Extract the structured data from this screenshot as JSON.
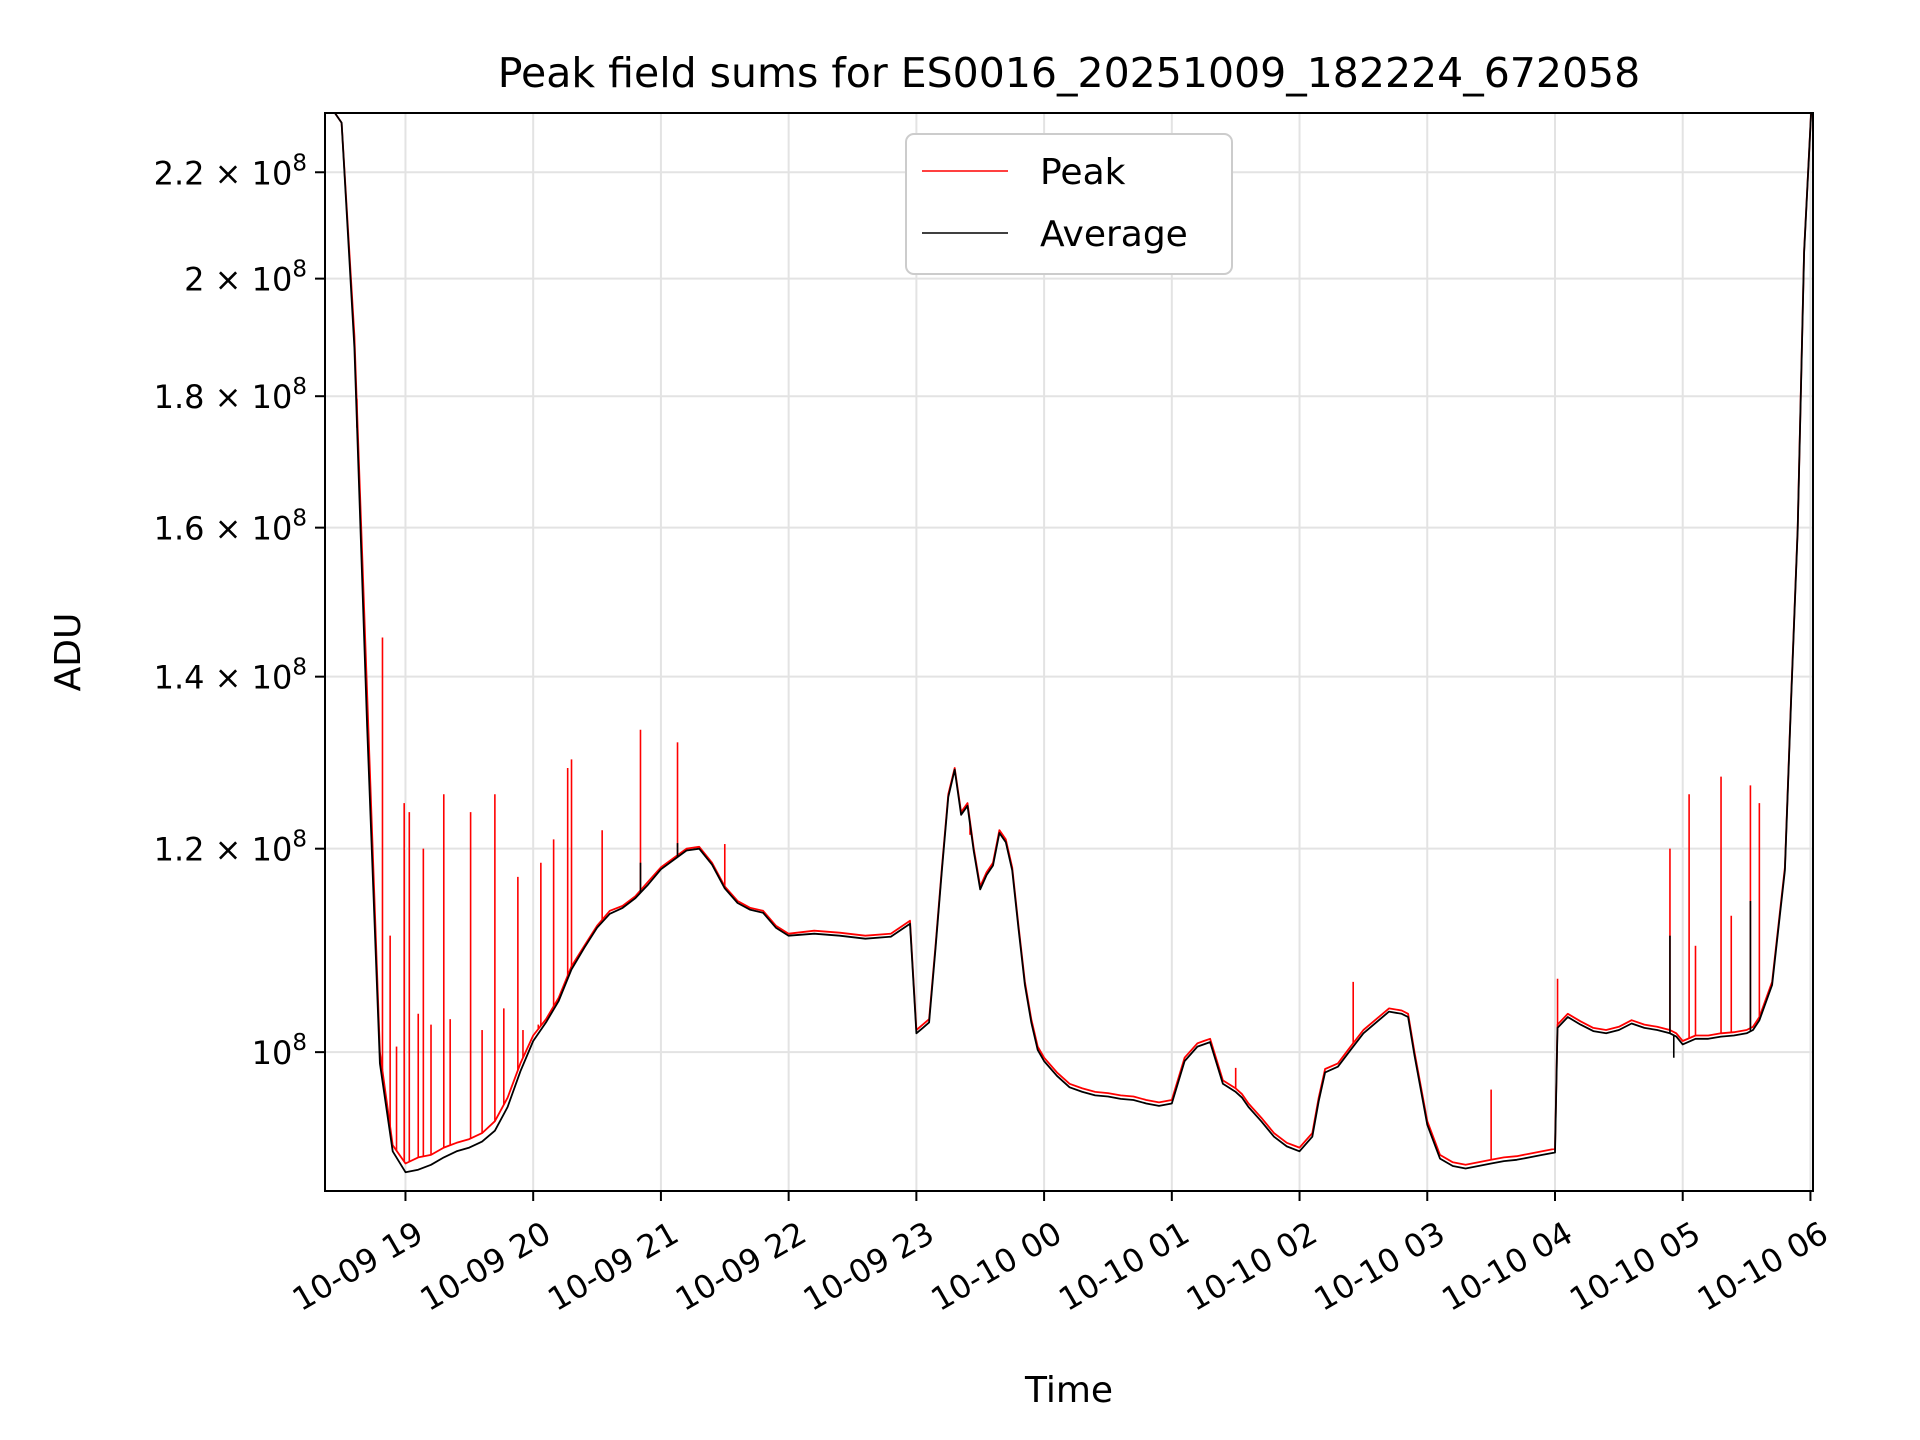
{
  "chart_data": {
    "type": "line",
    "title": "Peak field sums for ES0016_20251009_182224_672058",
    "xlabel": "Time",
    "ylabel": "ADU",
    "yscale": "log",
    "grid": true,
    "legend_position": "top-center",
    "x_unit": "hours since 10-09 00:00",
    "xlim": [
      18.37,
      30.02
    ],
    "ylim": [
      88300000,
      232000000
    ],
    "x_ticks": [
      {
        "value": 19,
        "label": "10-09 19"
      },
      {
        "value": 20,
        "label": "10-09 20"
      },
      {
        "value": 21,
        "label": "10-09 21"
      },
      {
        "value": 22,
        "label": "10-09 22"
      },
      {
        "value": 23,
        "label": "10-09 23"
      },
      {
        "value": 24,
        "label": "10-10 00"
      },
      {
        "value": 25,
        "label": "10-10 01"
      },
      {
        "value": 26,
        "label": "10-10 02"
      },
      {
        "value": 27,
        "label": "10-10 03"
      },
      {
        "value": 28,
        "label": "10-10 04"
      },
      {
        "value": 29,
        "label": "10-10 05"
      },
      {
        "value": 30,
        "label": "10-10 06"
      }
    ],
    "y_ticks": [
      {
        "value": 100000000,
        "mant": "",
        "exp": "8"
      },
      {
        "value": 120000000,
        "mant": "1.2",
        "exp": "8"
      },
      {
        "value": 140000000,
        "mant": "1.4",
        "exp": "8"
      },
      {
        "value": 160000000,
        "mant": "1.6",
        "exp": "8"
      },
      {
        "value": 180000000,
        "mant": "1.8",
        "exp": "8"
      },
      {
        "value": 200000000,
        "mant": "2",
        "exp": "8"
      },
      {
        "value": 220000000,
        "mant": "2.2",
        "exp": "8"
      }
    ],
    "series": [
      {
        "name": "Peak",
        "color": "#ff0000",
        "x": [
          18.37,
          18.5,
          18.6,
          18.7,
          18.8,
          18.9,
          19.0,
          19.1,
          19.2,
          19.3,
          19.4,
          19.5,
          19.6,
          19.7,
          19.8,
          19.9,
          20.0,
          20.1,
          20.2,
          20.3,
          20.4,
          20.5,
          20.6,
          20.7,
          20.8,
          20.9,
          21.0,
          21.1,
          21.2,
          21.3,
          21.4,
          21.5,
          21.6,
          21.7,
          21.8,
          21.9,
          22.0,
          22.2,
          22.4,
          22.6,
          22.8,
          22.95,
          23.0,
          23.05,
          23.1,
          23.15,
          23.2,
          23.25,
          23.3,
          23.35,
          23.4,
          23.45,
          23.5,
          23.55,
          23.6,
          23.65,
          23.7,
          23.75,
          23.8,
          23.85,
          23.9,
          23.95,
          24.0,
          24.1,
          24.2,
          24.3,
          24.4,
          24.5,
          24.6,
          24.7,
          24.8,
          24.9,
          25.0,
          25.1,
          25.2,
          25.25,
          25.3,
          25.4,
          25.5,
          25.55,
          25.6,
          25.7,
          25.8,
          25.9,
          26.0,
          26.1,
          26.15,
          26.2,
          26.3,
          26.4,
          26.5,
          26.6,
          26.7,
          26.8,
          26.85,
          26.9,
          27.0,
          27.1,
          27.2,
          27.3,
          27.4,
          27.5,
          27.6,
          27.7,
          27.8,
          27.9,
          28.0,
          28.02,
          28.1,
          28.2,
          28.3,
          28.4,
          28.5,
          28.6,
          28.7,
          28.8,
          28.9,
          28.95,
          29.0,
          29.1,
          29.2,
          29.3,
          29.4,
          29.5,
          29.55,
          29.6,
          29.7,
          29.8,
          29.85,
          29.9,
          29.95,
          30.02
        ],
        "values": [
          235000000,
          230000000,
          190000000,
          138000000,
          100000000,
          92000000,
          90500000,
          91000000,
          91200000,
          91800000,
          92200000,
          92500000,
          93000000,
          94000000,
          96000000,
          99000000,
          101500000,
          103000000,
          105000000,
          108000000,
          110000000,
          112000000,
          113500000,
          114000000,
          115000000,
          116500000,
          118000000,
          119000000,
          120000000,
          120200000,
          118500000,
          116000000,
          114500000,
          113800000,
          113500000,
          112000000,
          111200000,
          111500000,
          111300000,
          111000000,
          111200000,
          112500000,
          102000000,
          102500000,
          103000000,
          110000000,
          118000000,
          126000000,
          129000000,
          124000000,
          125000000,
          120000000,
          116000000,
          117500000,
          118500000,
          122000000,
          121000000,
          118000000,
          112000000,
          106500000,
          103000000,
          100500000,
          99500000,
          98200000,
          97200000,
          96800000,
          96500000,
          96400000,
          96200000,
          96100000,
          95800000,
          95600000,
          95800000,
          99500000,
          100800000,
          101000000,
          101200000,
          97500000,
          96800000,
          96300000,
          95500000,
          94300000,
          93000000,
          92200000,
          91800000,
          93000000,
          96000000,
          98500000,
          99000000,
          100500000,
          102000000,
          103000000,
          104000000,
          103800000,
          103500000,
          100000000,
          94000000,
          91200000,
          90600000,
          90400000,
          90600000,
          90800000,
          91000000,
          91100000,
          91300000,
          91500000,
          91700000,
          102500000,
          103500000,
          102800000,
          102200000,
          102000000,
          102300000,
          102900000,
          102500000,
          102300000,
          102000000,
          101700000,
          101000000,
          101500000,
          101500000,
          101700000,
          101800000,
          102000000,
          102300000,
          103200000,
          106500000,
          118000000,
          138000000,
          160000000,
          205000000,
          240000000
        ],
        "spikes": [
          {
            "x": 18.62,
            "v": 175000000
          },
          {
            "x": 18.7,
            "v": 137000000
          },
          {
            "x": 18.82,
            "v": 145000000
          },
          {
            "x": 18.88,
            "v": 111000000
          },
          {
            "x": 18.93,
            "v": 100500000
          },
          {
            "x": 18.99,
            "v": 125000000
          },
          {
            "x": 19.03,
            "v": 124000000
          },
          {
            "x": 19.1,
            "v": 103500000
          },
          {
            "x": 19.14,
            "v": 120000000
          },
          {
            "x": 19.2,
            "v": 102500000
          },
          {
            "x": 19.3,
            "v": 126000000
          },
          {
            "x": 19.35,
            "v": 103000000
          },
          {
            "x": 19.51,
            "v": 124000000
          },
          {
            "x": 19.6,
            "v": 102000000
          },
          {
            "x": 19.7,
            "v": 126000000
          },
          {
            "x": 19.77,
            "v": 104000000
          },
          {
            "x": 19.88,
            "v": 117000000
          },
          {
            "x": 19.92,
            "v": 102000000
          },
          {
            "x": 20.04,
            "v": 102500000
          },
          {
            "x": 20.06,
            "v": 118500000
          },
          {
            "x": 20.16,
            "v": 121000000
          },
          {
            "x": 20.27,
            "v": 129000000
          },
          {
            "x": 20.3,
            "v": 130000000
          },
          {
            "x": 20.54,
            "v": 122000000
          },
          {
            "x": 20.84,
            "v": 133500000
          },
          {
            "x": 21.13,
            "v": 132000000
          },
          {
            "x": 21.5,
            "v": 120500000
          },
          {
            "x": 23.42,
            "v": 121500000
          },
          {
            "x": 25.5,
            "v": 98600000
          },
          {
            "x": 26.42,
            "v": 106500000
          },
          {
            "x": 27.5,
            "v": 96700000
          },
          {
            "x": 28.02,
            "v": 106800000
          },
          {
            "x": 28.9,
            "v": 120000000
          },
          {
            "x": 29.05,
            "v": 126000000
          },
          {
            "x": 29.1,
            "v": 110000000
          },
          {
            "x": 29.3,
            "v": 128000000
          },
          {
            "x": 29.38,
            "v": 113000000
          },
          {
            "x": 29.53,
            "v": 127000000
          },
          {
            "x": 29.6,
            "v": 125000000
          }
        ]
      },
      {
        "name": "Average",
        "color": "#000000",
        "x": [
          18.37,
          18.5,
          18.6,
          18.7,
          18.8,
          18.9,
          19.0,
          19.1,
          19.2,
          19.3,
          19.4,
          19.5,
          19.6,
          19.7,
          19.8,
          19.9,
          20.0,
          20.1,
          20.2,
          20.3,
          20.4,
          20.5,
          20.6,
          20.7,
          20.8,
          20.9,
          21.0,
          21.1,
          21.2,
          21.3,
          21.4,
          21.5,
          21.6,
          21.7,
          21.8,
          21.9,
          22.0,
          22.2,
          22.4,
          22.6,
          22.8,
          22.95,
          23.0,
          23.05,
          23.1,
          23.15,
          23.2,
          23.25,
          23.3,
          23.35,
          23.4,
          23.45,
          23.5,
          23.55,
          23.6,
          23.65,
          23.7,
          23.75,
          23.8,
          23.85,
          23.9,
          23.95,
          24.0,
          24.1,
          24.2,
          24.3,
          24.4,
          24.5,
          24.6,
          24.7,
          24.8,
          24.9,
          25.0,
          25.1,
          25.2,
          25.25,
          25.3,
          25.4,
          25.5,
          25.55,
          25.6,
          25.7,
          25.8,
          25.9,
          26.0,
          26.1,
          26.15,
          26.2,
          26.3,
          26.4,
          26.5,
          26.6,
          26.7,
          26.8,
          26.85,
          26.9,
          27.0,
          27.1,
          27.2,
          27.3,
          27.4,
          27.5,
          27.6,
          27.7,
          27.8,
          27.9,
          28.0,
          28.02,
          28.1,
          28.2,
          28.3,
          28.4,
          28.5,
          28.6,
          28.7,
          28.8,
          28.9,
          28.95,
          29.0,
          29.1,
          29.2,
          29.3,
          29.4,
          29.5,
          29.55,
          29.6,
          29.7,
          29.8,
          29.85,
          29.9,
          29.95,
          30.02
        ],
        "values": [
          235000000,
          230000000,
          188000000,
          134000000,
          99000000,
          91500000,
          89800000,
          90000000,
          90400000,
          91000000,
          91500000,
          91800000,
          92300000,
          93200000,
          95200000,
          98300000,
          101000000,
          102700000,
          104700000,
          107700000,
          109800000,
          111800000,
          113200000,
          113800000,
          114800000,
          116200000,
          117800000,
          118800000,
          119800000,
          120000000,
          118300000,
          115800000,
          114300000,
          113600000,
          113300000,
          111800000,
          111000000,
          111200000,
          111000000,
          110700000,
          110900000,
          112200000,
          101700000,
          102200000,
          102700000,
          109700000,
          117700000,
          125700000,
          128800000,
          123700000,
          124700000,
          119700000,
          115700000,
          117200000,
          118200000,
          121700000,
          120700000,
          117700000,
          111700000,
          106200000,
          102700000,
          100200000,
          99200000,
          97900000,
          96900000,
          96500000,
          96200000,
          96100000,
          95900000,
          95800000,
          95500000,
          95300000,
          95500000,
          99200000,
          100500000,
          100700000,
          100900000,
          97200000,
          96500000,
          96000000,
          95200000,
          94000000,
          92700000,
          91900000,
          91500000,
          92700000,
          95700000,
          98200000,
          98700000,
          100200000,
          101700000,
          102700000,
          103700000,
          103500000,
          103200000,
          99700000,
          93700000,
          90900000,
          90300000,
          90100000,
          90300000,
          90500000,
          90700000,
          90800000,
          91000000,
          91200000,
          91400000,
          102200000,
          103200000,
          102500000,
          101900000,
          101700000,
          102000000,
          102600000,
          102200000,
          102000000,
          101700000,
          101400000,
          100700000,
          101200000,
          101200000,
          101400000,
          101500000,
          101700000,
          102000000,
          102900000,
          106200000,
          117700000,
          137700000,
          159700000,
          204700000,
          240000000
        ],
        "spikes": [
          {
            "x": 20.84,
            "v": 118500000
          },
          {
            "x": 21.13,
            "v": 120600000
          },
          {
            "x": 28.9,
            "v": 111000000
          },
          {
            "x": 28.93,
            "v": 99500000
          },
          {
            "x": 29.53,
            "v": 114500000
          }
        ]
      }
    ]
  }
}
